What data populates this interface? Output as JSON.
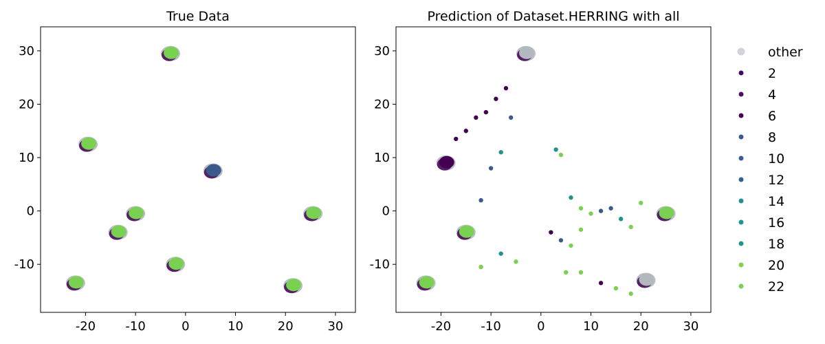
{
  "chart_data": [
    {
      "type": "scatter",
      "title": "True Data",
      "xlabel": "",
      "ylabel": "",
      "xlim": [
        -29,
        34
      ],
      "ylim": [
        -19,
        34.5
      ],
      "xticks": [
        -20,
        -10,
        0,
        10,
        20,
        30
      ],
      "xtick_labels": [
        "-20",
        "-10",
        "0",
        "10",
        "20",
        "30"
      ],
      "yticks": [
        -10,
        0,
        10,
        20,
        30
      ],
      "ytick_labels": [
        "-10",
        "0",
        "10",
        "20",
        "30"
      ],
      "grid": false,
      "clusters": [
        {
          "x": -3,
          "y": 29.5,
          "class": "22"
        },
        {
          "x": -19.5,
          "y": 12.5,
          "class": "22"
        },
        {
          "x": -13.5,
          "y": -4.0,
          "class": "22"
        },
        {
          "x": -10,
          "y": -0.5,
          "class": "22"
        },
        {
          "x": -2,
          "y": -10,
          "class": "22"
        },
        {
          "x": 5.5,
          "y": 7.5,
          "class": "10"
        },
        {
          "x": 25.5,
          "y": -0.5,
          "class": "22"
        },
        {
          "x": -22,
          "y": -13.5,
          "class": "22"
        },
        {
          "x": 21.5,
          "y": -14,
          "class": "22"
        }
      ]
    },
    {
      "type": "scatter",
      "title": "Prediction of Dataset.HERRING with all",
      "xlabel": "",
      "ylabel": "",
      "xlim": [
        -29,
        34
      ],
      "ylim": [
        -19,
        34.5
      ],
      "xticks": [
        -20,
        -10,
        0,
        10,
        20,
        30
      ],
      "xtick_labels": [
        "-20",
        "-10",
        "0",
        "10",
        "20",
        "30"
      ],
      "yticks": [
        -10,
        0,
        10,
        20,
        30
      ],
      "ytick_labels": [
        "-10",
        "0",
        "10",
        "20",
        "30"
      ],
      "grid": false,
      "clusters": [
        {
          "x": -3,
          "y": 29.5,
          "class": "other"
        },
        {
          "x": -19,
          "y": 9,
          "class": "6"
        },
        {
          "x": -15,
          "y": -4,
          "class": "20"
        },
        {
          "x": -23,
          "y": -13.5,
          "class": "20"
        },
        {
          "x": 21,
          "y": -13,
          "class": "other"
        },
        {
          "x": 25,
          "y": -0.5,
          "class": "20"
        }
      ],
      "points": [
        {
          "x": -11,
          "y": 18.5,
          "class": "4"
        },
        {
          "x": -13,
          "y": 17.5,
          "class": "4"
        },
        {
          "x": -15,
          "y": 15,
          "class": "4"
        },
        {
          "x": -17,
          "y": 13.5,
          "class": "4"
        },
        {
          "x": -9,
          "y": 21,
          "class": "4"
        },
        {
          "x": -7,
          "y": 23,
          "class": "4"
        },
        {
          "x": -6,
          "y": 17.5,
          "class": "8"
        },
        {
          "x": -8,
          "y": 11,
          "class": "14"
        },
        {
          "x": -10,
          "y": 8,
          "class": "12"
        },
        {
          "x": -12,
          "y": 2,
          "class": "12"
        },
        {
          "x": 3,
          "y": 11.5,
          "class": "14"
        },
        {
          "x": 4,
          "y": 10.5,
          "class": "20"
        },
        {
          "x": 6,
          "y": 2.5,
          "class": "14"
        },
        {
          "x": 8,
          "y": 0.5,
          "class": "20"
        },
        {
          "x": 10,
          "y": -0.5,
          "class": "20"
        },
        {
          "x": 12,
          "y": 0,
          "class": "12"
        },
        {
          "x": 14,
          "y": 0.5,
          "class": "10"
        },
        {
          "x": 16,
          "y": -1.5,
          "class": "18"
        },
        {
          "x": 18,
          "y": -3,
          "class": "20"
        },
        {
          "x": 20,
          "y": 1.5,
          "class": "20"
        },
        {
          "x": 2,
          "y": -4,
          "class": "6"
        },
        {
          "x": 4,
          "y": -5.5,
          "class": "8"
        },
        {
          "x": 6,
          "y": -6.5,
          "class": "20"
        },
        {
          "x": 8,
          "y": -3.5,
          "class": "20"
        },
        {
          "x": -12,
          "y": -10.5,
          "class": "20"
        },
        {
          "x": -8,
          "y": -8,
          "class": "14"
        },
        {
          "x": -5,
          "y": -9.5,
          "class": "20"
        },
        {
          "x": 5,
          "y": -11.5,
          "class": "20"
        },
        {
          "x": 8,
          "y": -11.5,
          "class": "20"
        },
        {
          "x": 12,
          "y": -13.5,
          "class": "4"
        },
        {
          "x": 15,
          "y": -14.5,
          "class": "20"
        },
        {
          "x": 18,
          "y": -15.5,
          "class": "20"
        }
      ]
    }
  ],
  "legend": {
    "placement": "right",
    "entries": [
      "other",
      "2",
      "4",
      "6",
      "8",
      "10",
      "12",
      "14",
      "16",
      "18",
      "20",
      "22"
    ],
    "colors": [
      "#b8bec6",
      "#460a5d",
      "#4a0f62",
      "#440154",
      "#3b5a8c",
      "#355f8d",
      "#33638d",
      "#21918c",
      "#1f978b",
      "#22958a",
      "#84d44b",
      "#7ad151"
    ]
  },
  "palette": {
    "other": "#b3b8bf",
    "purple": "#440154",
    "blue": "#3b5a8c",
    "teal": "#21918c",
    "green": "#7ad151"
  }
}
